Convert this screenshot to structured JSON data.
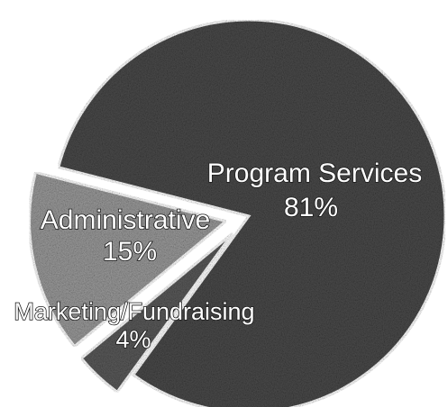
{
  "chart_data": {
    "type": "pie",
    "title": "",
    "slices": [
      {
        "label": "Program Services",
        "value": 81,
        "value_label": "81%",
        "color": "#4a4a4a",
        "exploded": false
      },
      {
        "label": "Marketing/Fundraising",
        "value": 4,
        "value_label": "4%",
        "color": "#5a5a5a",
        "exploded": true
      },
      {
        "label": "Administrative",
        "value": 15,
        "value_label": "15%",
        "color": "#9a9a9a",
        "exploded": true
      }
    ],
    "legend": "none",
    "grid": false
  }
}
